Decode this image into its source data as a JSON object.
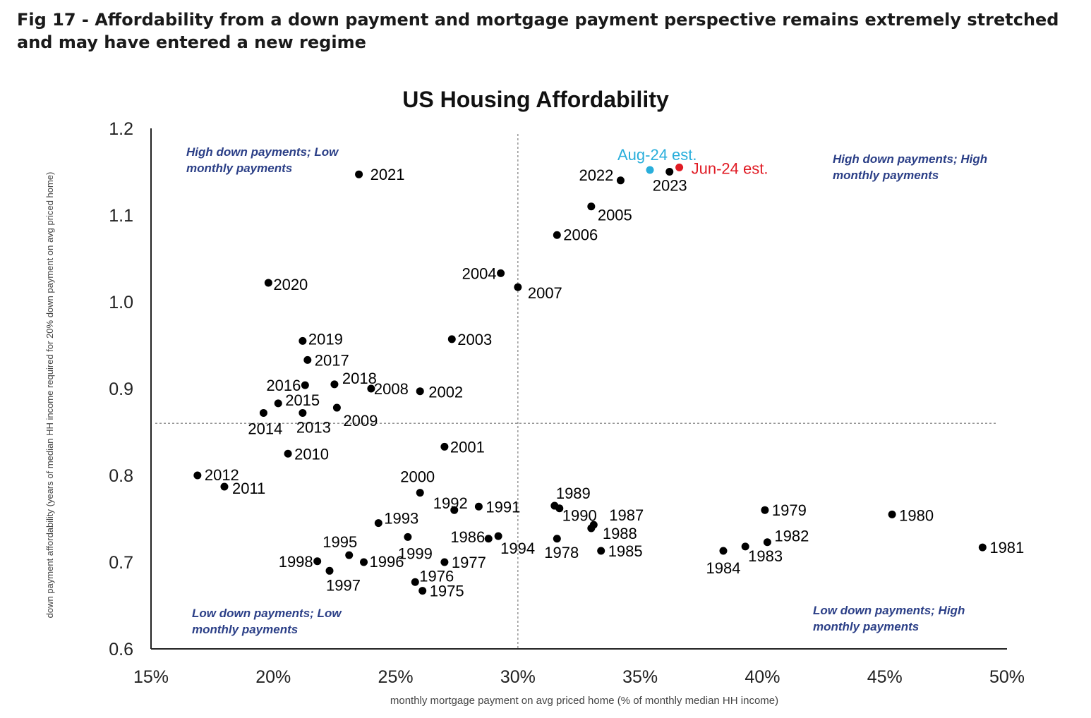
{
  "figure": {
    "caption": "Fig 17 - Affordability from a down payment and mortgage payment perspective remains extremely stretched and may have entered a new regime"
  },
  "colors": {
    "point": "#000000",
    "aug_est": "#29aedb",
    "jun_est": "#e01b24",
    "quadrant_text": "#2b3f87",
    "axis": "#222222",
    "reference_line": "#888888"
  },
  "chart_data": {
    "type": "scatter",
    "title": "US Housing Affordability",
    "xlabel": "monthly mortgage payment on avg priced home (% of monthly median HH income)",
    "ylabel": "down payment affordability (years of median HH income required for 20% down payment on avg priced home)",
    "xlim": [
      0.15,
      0.5
    ],
    "ylim": [
      0.6,
      1.2
    ],
    "x_format": "percent",
    "x_ticks": [
      "15%",
      "20%",
      "25%",
      "30%",
      "35%",
      "40%",
      "45%",
      "50%"
    ],
    "y_ticks": [
      "0.6",
      "0.7",
      "0.8",
      "0.9",
      "1.0",
      "1.1",
      "1.2"
    ],
    "reference_lines": {
      "x": 0.3,
      "y": 0.86
    },
    "quadrant_labels": [
      {
        "text": "High down payments; Low monthly payments",
        "position": "top-left"
      },
      {
        "text": "High down payments; High monthly payments",
        "position": "top-right"
      },
      {
        "text": "Low down payments; Low monthly payments",
        "position": "bottom-left"
      },
      {
        "text": "Low down payments; High monthly payments",
        "position": "bottom-right"
      }
    ],
    "points": [
      {
        "label": "1975",
        "x": 0.261,
        "y": 0.667
      },
      {
        "label": "1976",
        "x": 0.258,
        "y": 0.677
      },
      {
        "label": "1977",
        "x": 0.27,
        "y": 0.7
      },
      {
        "label": "1978",
        "x": 0.316,
        "y": 0.727
      },
      {
        "label": "1979",
        "x": 0.401,
        "y": 0.76
      },
      {
        "label": "1980",
        "x": 0.453,
        "y": 0.755
      },
      {
        "label": "1981",
        "x": 0.49,
        "y": 0.717
      },
      {
        "label": "1982",
        "x": 0.402,
        "y": 0.723
      },
      {
        "label": "1983",
        "x": 0.393,
        "y": 0.718
      },
      {
        "label": "1984",
        "x": 0.384,
        "y": 0.713
      },
      {
        "label": "1985",
        "x": 0.334,
        "y": 0.713
      },
      {
        "label": "1986",
        "x": 0.288,
        "y": 0.727
      },
      {
        "label": "1987",
        "x": 0.331,
        "y": 0.743
      },
      {
        "label": "1988",
        "x": 0.33,
        "y": 0.739
      },
      {
        "label": "1989",
        "x": 0.315,
        "y": 0.765
      },
      {
        "label": "1990",
        "x": 0.317,
        "y": 0.762
      },
      {
        "label": "1991",
        "x": 0.284,
        "y": 0.764
      },
      {
        "label": "1992",
        "x": 0.274,
        "y": 0.76
      },
      {
        "label": "1993",
        "x": 0.243,
        "y": 0.745
      },
      {
        "label": "1994",
        "x": 0.292,
        "y": 0.73
      },
      {
        "label": "1995",
        "x": 0.231,
        "y": 0.708
      },
      {
        "label": "1996",
        "x": 0.237,
        "y": 0.7
      },
      {
        "label": "1997",
        "x": 0.223,
        "y": 0.69
      },
      {
        "label": "1998",
        "x": 0.218,
        "y": 0.701
      },
      {
        "label": "1999",
        "x": 0.255,
        "y": 0.729
      },
      {
        "label": "2000",
        "x": 0.26,
        "y": 0.78
      },
      {
        "label": "2001",
        "x": 0.27,
        "y": 0.833
      },
      {
        "label": "2002",
        "x": 0.26,
        "y": 0.897
      },
      {
        "label": "2003",
        "x": 0.273,
        "y": 0.957
      },
      {
        "label": "2004",
        "x": 0.293,
        "y": 1.033
      },
      {
        "label": "2005",
        "x": 0.33,
        "y": 1.11
      },
      {
        "label": "2006",
        "x": 0.316,
        "y": 1.077
      },
      {
        "label": "2007",
        "x": 0.3,
        "y": 1.017
      },
      {
        "label": "2008",
        "x": 0.24,
        "y": 0.9
      },
      {
        "label": "2009",
        "x": 0.226,
        "y": 0.878
      },
      {
        "label": "2010",
        "x": 0.206,
        "y": 0.825
      },
      {
        "label": "2011",
        "x": 0.18,
        "y": 0.787
      },
      {
        "label": "2012",
        "x": 0.169,
        "y": 0.8
      },
      {
        "label": "2013",
        "x": 0.212,
        "y": 0.872
      },
      {
        "label": "2014",
        "x": 0.196,
        "y": 0.872
      },
      {
        "label": "2015",
        "x": 0.202,
        "y": 0.883
      },
      {
        "label": "2016",
        "x": 0.213,
        "y": 0.904
      },
      {
        "label": "2017",
        "x": 0.214,
        "y": 0.933
      },
      {
        "label": "2018",
        "x": 0.225,
        "y": 0.905
      },
      {
        "label": "2019",
        "x": 0.212,
        "y": 0.955
      },
      {
        "label": "2020",
        "x": 0.198,
        "y": 1.022
      },
      {
        "label": "2021",
        "x": 0.235,
        "y": 1.147
      },
      {
        "label": "2022",
        "x": 0.342,
        "y": 1.14
      },
      {
        "label": "2023",
        "x": 0.362,
        "y": 1.15
      },
      {
        "label": "Aug-24 est.",
        "x": 0.354,
        "y": 1.152,
        "color": "#29aedb"
      },
      {
        "label": "Jun-24 est.",
        "x": 0.366,
        "y": 1.155,
        "color": "#e01b24"
      }
    ]
  }
}
